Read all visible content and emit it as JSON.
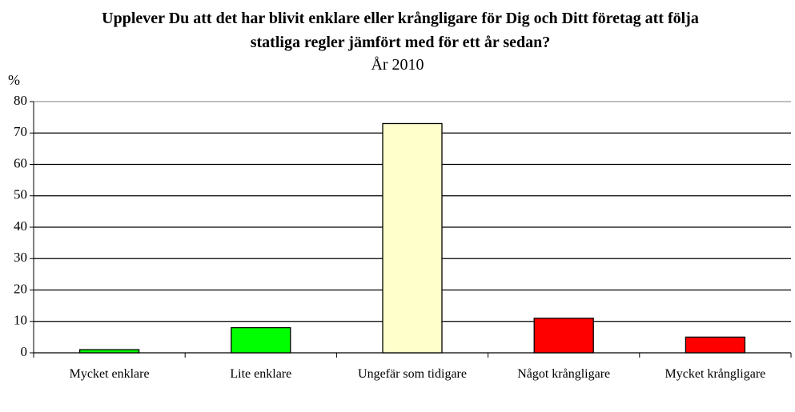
{
  "chart_data": {
    "type": "bar",
    "title": "Upplever Du att det har blivit enklare eller krångligare för Dig och Ditt företag att följa statliga regler jämfört med för ett år sedan?",
    "subtitle": "År 2010",
    "y_label": "%",
    "categories": [
      "Mycket enklare",
      "Lite enklare",
      "Ungefär som tidigare",
      "Något krångligare",
      "Mycket krångligare"
    ],
    "values": [
      1,
      8,
      73,
      11,
      5
    ],
    "colors": [
      "#00ff00",
      "#00ff00",
      "#ffffcc",
      "#ff0000",
      "#ff0000"
    ],
    "ylim": [
      0,
      80
    ],
    "yticks": [
      0,
      10,
      20,
      30,
      40,
      50,
      60,
      70,
      80
    ],
    "grid": true
  }
}
